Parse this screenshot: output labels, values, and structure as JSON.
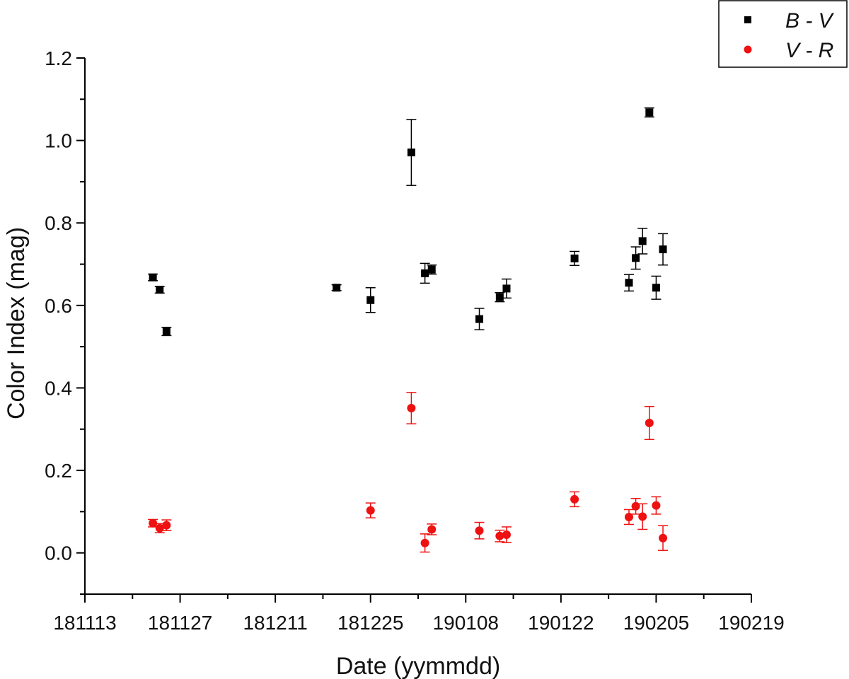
{
  "chart_data": {
    "type": "scatter",
    "xlabel": "Date (yymmdd)",
    "ylabel": "Color Index (mag)",
    "x_ticks": [
      "181113",
      "181127",
      "181211",
      "181225",
      "190108",
      "190122",
      "190205",
      "190219"
    ],
    "y_ticks": [
      "0.0",
      "0.2",
      "0.4",
      "0.6",
      "0.8",
      "1.0",
      "1.2"
    ],
    "xlim": [
      "2018-11-13",
      "2019-02-19"
    ],
    "ylim": [
      -0.1,
      1.2
    ],
    "legend_position": "top-right",
    "series": [
      {
        "name": "B - V",
        "color": "#000000",
        "marker": "square",
        "points": [
          {
            "x": "2018-11-23",
            "y": 0.668,
            "err": 0.008
          },
          {
            "x": "2018-11-24",
            "y": 0.638,
            "err": 0.008
          },
          {
            "x": "2018-11-25",
            "y": 0.537,
            "err": 0.01
          },
          {
            "x": "2018-12-20",
            "y": 0.643,
            "err": 0.007
          },
          {
            "x": "2018-12-25",
            "y": 0.613,
            "err": 0.03
          },
          {
            "x": "2018-12-31",
            "y": 0.971,
            "err": 0.08
          },
          {
            "x": "2019-01-02",
            "y": 0.678,
            "err": 0.024
          },
          {
            "x": "2019-01-03",
            "y": 0.687,
            "err": 0.011
          },
          {
            "x": "2019-01-10",
            "y": 0.567,
            "err": 0.026
          },
          {
            "x": "2019-01-13",
            "y": 0.62,
            "err": 0.011
          },
          {
            "x": "2019-01-14",
            "y": 0.641,
            "err": 0.023
          },
          {
            "x": "2019-01-24",
            "y": 0.714,
            "err": 0.017
          },
          {
            "x": "2019-02-01",
            "y": 0.655,
            "err": 0.02
          },
          {
            "x": "2019-02-02",
            "y": 0.715,
            "err": 0.027
          },
          {
            "x": "2019-02-03",
            "y": 0.756,
            "err": 0.031
          },
          {
            "x": "2019-02-04",
            "y": 1.068,
            "err": 0.011
          },
          {
            "x": "2019-02-05",
            "y": 0.643,
            "err": 0.028
          },
          {
            "x": "2019-02-06",
            "y": 0.736,
            "err": 0.038
          }
        ]
      },
      {
        "name": "V - R",
        "color": "#ee1111",
        "marker": "circle",
        "points": [
          {
            "x": "2018-11-23",
            "y": 0.072,
            "err": 0.009
          },
          {
            "x": "2018-11-24",
            "y": 0.06,
            "err": 0.011
          },
          {
            "x": "2018-11-25",
            "y": 0.067,
            "err": 0.013
          },
          {
            "x": "2018-12-25",
            "y": 0.103,
            "err": 0.018
          },
          {
            "x": "2018-12-31",
            "y": 0.351,
            "err": 0.038
          },
          {
            "x": "2019-01-02",
            "y": 0.024,
            "err": 0.022
          },
          {
            "x": "2019-01-03",
            "y": 0.057,
            "err": 0.013
          },
          {
            "x": "2019-01-10",
            "y": 0.054,
            "err": 0.02
          },
          {
            "x": "2019-01-13",
            "y": 0.041,
            "err": 0.014
          },
          {
            "x": "2019-01-14",
            "y": 0.044,
            "err": 0.019
          },
          {
            "x": "2019-01-24",
            "y": 0.13,
            "err": 0.018
          },
          {
            "x": "2019-02-01",
            "y": 0.087,
            "err": 0.018
          },
          {
            "x": "2019-02-02",
            "y": 0.113,
            "err": 0.019
          },
          {
            "x": "2019-02-03",
            "y": 0.088,
            "err": 0.031
          },
          {
            "x": "2019-02-04",
            "y": 0.315,
            "err": 0.04
          },
          {
            "x": "2019-02-05",
            "y": 0.115,
            "err": 0.021
          },
          {
            "x": "2019-02-06",
            "y": 0.036,
            "err": 0.03
          }
        ]
      }
    ]
  }
}
